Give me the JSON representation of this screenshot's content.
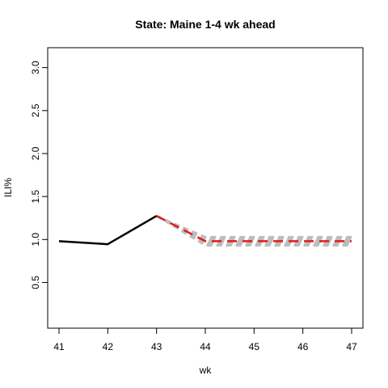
{
  "chart_data": {
    "type": "line",
    "title": "State: Maine 1-4 wk ahead",
    "xlabel": "wk",
    "ylabel": "ILI%",
    "xlim": [
      41,
      47
    ],
    "ylim": [
      0.1,
      3.1
    ],
    "x_ticks": [
      41,
      42,
      43,
      44,
      45,
      46,
      47
    ],
    "y_ticks": [
      0.5,
      1.0,
      1.5,
      2.0,
      2.5,
      3.0
    ],
    "y_tick_labels": [
      "0.5",
      "1.0",
      "1.5",
      "2.0",
      "2.5",
      "3.0"
    ],
    "grid": false,
    "legend": "none",
    "series": [
      {
        "role": "observed",
        "color": "#000000",
        "style": "solid",
        "x": [
          41,
          42,
          43
        ],
        "y": [
          0.98,
          0.945,
          1.275
        ]
      },
      {
        "role": "forecast",
        "color": "#e31a1c",
        "style": "dashed",
        "x": [
          43,
          44,
          45,
          46,
          47
        ],
        "y": [
          1.275,
          0.98,
          0.98,
          0.98,
          0.98
        ]
      }
    ],
    "interval_band": {
      "color": "#bdbdbd",
      "style": "dashed",
      "x": [
        43,
        44,
        45,
        46,
        47
      ],
      "lower": [
        1.275,
        0.93,
        0.93,
        0.93,
        0.93
      ],
      "upper": [
        1.275,
        1.03,
        1.03,
        1.03,
        1.03
      ]
    }
  }
}
